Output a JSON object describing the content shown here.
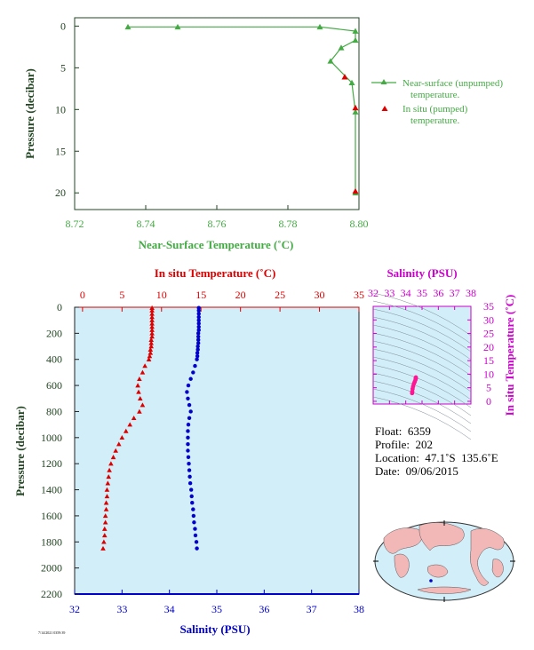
{
  "top": {
    "y_label": "Pressure (decibar)",
    "x_label": "Near-Surface Temperature (˚C)",
    "legend": [
      "Near-surface (unpumped)\ntemperature.",
      "In situ (pumped)\ntemperature."
    ]
  },
  "main": {
    "top_axis_label": "In situ Temperature (˚C)",
    "bottom_axis_label": "Salinity (PSU)",
    "y_label": "Pressure (decibar)"
  },
  "inset": {
    "top_label": "Salinity (PSU)",
    "right_label": "In situ Temperature (˚C)"
  },
  "info": {
    "float": "Float:  6359",
    "profile": "Profile:  202",
    "location": "Location:  47.1˚S  135.6˚E",
    "date": "Date:  09/06/2015"
  },
  "footer": "7/14/2021 0359:39",
  "colors": {
    "green": "#44aa44",
    "darkgreen": "#224422",
    "red": "#dd0000",
    "blue": "#0000cc",
    "magenta": "#cc00cc",
    "panel": "#d2eef8",
    "land": "#f2b8b8"
  },
  "chart_data": [
    {
      "type": "line",
      "x_label": "Near-Surface Temperature (˚C)",
      "y_label": "Pressure (decibar)",
      "xlim": [
        8.72,
        8.8
      ],
      "ylim": [
        22,
        -1
      ],
      "x_ticks": [
        "8.72",
        "8.74",
        "8.76",
        "8.78",
        "8.80"
      ],
      "y_ticks": [
        "0",
        "5",
        "10",
        "15",
        "20"
      ],
      "series": [
        {
          "name": "Near-surface (unpumped) temperature.",
          "marker": "triangle",
          "x": [
            8.735,
            8.749,
            8.789,
            8.799,
            8.799,
            8.795,
            8.792,
            8.798,
            8.799,
            8.799
          ],
          "y": [
            0.1,
            0.1,
            0.1,
            0.6,
            1.7,
            2.6,
            4.2,
            6.8,
            10.3,
            20.0
          ]
        },
        {
          "name": "In situ (pumped) temperature.",
          "marker": "triangle",
          "x": [
            8.796,
            8.799,
            8.799
          ],
          "y": [
            6.1,
            9.8,
            19.8
          ]
        }
      ]
    },
    {
      "type": "scatter",
      "y_label": "Pressure (decibar)",
      "ylim": [
        2200,
        0
      ],
      "y_ticks": [
        "0",
        "200",
        "400",
        "600",
        "800",
        "1000",
        "1200",
        "1400",
        "1600",
        "1800",
        "2000",
        "2200"
      ],
      "top_axis": {
        "label": "In situ Temperature (˚C)",
        "lim": [
          -1,
          35
        ],
        "ticks": [
          "0",
          "5",
          "10",
          "15",
          "20",
          "25",
          "30",
          "35"
        ]
      },
      "bottom_axis": {
        "label": "Salinity (PSU)",
        "lim": [
          32,
          38
        ],
        "ticks": [
          "32",
          "33",
          "34",
          "35",
          "36",
          "37",
          "38"
        ]
      },
      "series": [
        {
          "name": "In situ Temperature",
          "marker": "triangle",
          "pressure": [
            5,
            25,
            50,
            75,
            100,
            125,
            150,
            175,
            200,
            225,
            250,
            275,
            300,
            325,
            350,
            375,
            400,
            450,
            500,
            550,
            600,
            650,
            700,
            750,
            800,
            850,
            900,
            950,
            1000,
            1050,
            1100,
            1150,
            1200,
            1250,
            1300,
            1350,
            1400,
            1450,
            1500,
            1550,
            1600,
            1650,
            1700,
            1750,
            1800,
            1850
          ],
          "values": [
            8.8,
            8.8,
            8.8,
            8.8,
            8.8,
            8.8,
            8.8,
            8.8,
            8.8,
            8.8,
            8.7,
            8.7,
            8.7,
            8.6,
            8.6,
            8.5,
            8.4,
            7.9,
            7.6,
            7.2,
            7.0,
            7.1,
            7.3,
            7.6,
            7.2,
            6.5,
            6.0,
            5.5,
            5.0,
            4.6,
            4.2,
            3.9,
            3.6,
            3.4,
            3.3,
            3.2,
            3.1,
            3.1,
            3.0,
            3.0,
            2.9,
            2.9,
            2.8,
            2.8,
            2.7,
            2.6
          ]
        },
        {
          "name": "Salinity",
          "marker": "dot",
          "pressure": [
            5,
            25,
            50,
            75,
            100,
            125,
            150,
            175,
            200,
            225,
            250,
            275,
            300,
            325,
            350,
            375,
            400,
            450,
            500,
            550,
            600,
            650,
            700,
            750,
            800,
            850,
            900,
            950,
            1000,
            1050,
            1100,
            1150,
            1200,
            1250,
            1300,
            1350,
            1400,
            1450,
            1500,
            1550,
            1600,
            1650,
            1700,
            1750,
            1800,
            1850
          ],
          "values": [
            34.62,
            34.62,
            34.62,
            34.62,
            34.62,
            34.62,
            34.62,
            34.62,
            34.61,
            34.61,
            34.61,
            34.61,
            34.6,
            34.6,
            34.59,
            34.59,
            34.58,
            34.54,
            34.5,
            34.45,
            34.4,
            34.37,
            34.39,
            34.42,
            34.45,
            34.42,
            34.4,
            34.39,
            34.39,
            34.39,
            34.39,
            34.4,
            34.41,
            34.42,
            34.43,
            34.44,
            34.46,
            34.47,
            34.48,
            34.5,
            34.51,
            34.52,
            34.54,
            34.55,
            34.57,
            34.58
          ]
        }
      ]
    },
    {
      "type": "scatter",
      "title": "Salinity (PSU)",
      "x_label": "Salinity (PSU)",
      "y_label": "In situ Temperature (˚C)",
      "xlim": [
        32,
        38
      ],
      "ylim": [
        -1,
        35
      ],
      "x_ticks": [
        "32",
        "33",
        "34",
        "35",
        "36",
        "37",
        "38"
      ],
      "y_ticks": [
        "0",
        "5",
        "10",
        "15",
        "20",
        "25",
        "30",
        "35"
      ],
      "x": [
        34.39,
        34.4,
        34.42,
        34.45,
        34.5,
        34.55,
        34.6,
        34.62,
        34.62
      ],
      "y": [
        3.0,
        3.6,
        4.6,
        5.5,
        6.5,
        7.2,
        8.0,
        8.5,
        8.8
      ]
    }
  ]
}
